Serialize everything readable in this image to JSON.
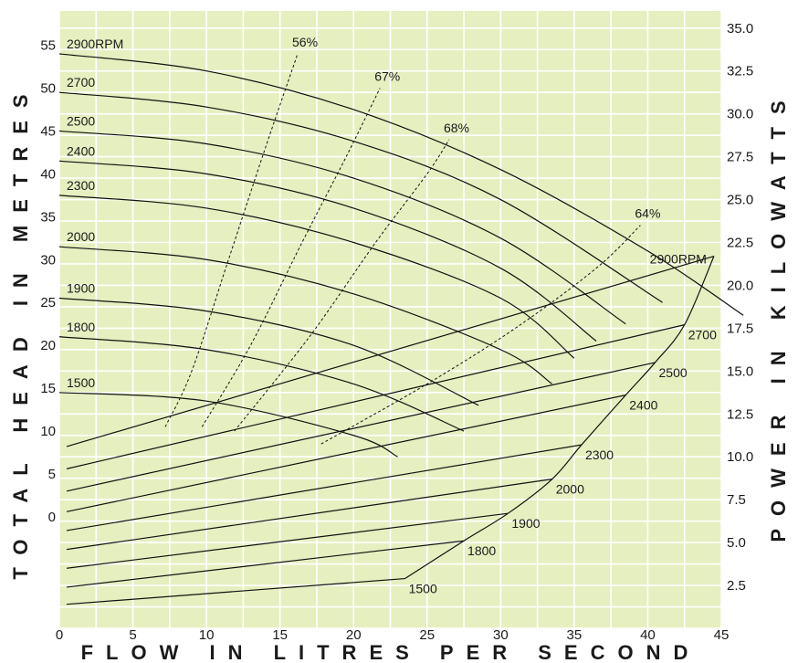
{
  "chart_data": {
    "type": "line",
    "xlabel": "FLOW IN LITRES PER SECOND",
    "ylabel_left": "TOTAL HEAD IN METRES",
    "ylabel_right": "POWER IN KILOWATTS",
    "xlim": [
      0,
      45
    ],
    "ylim_left": [
      -13,
      59
    ],
    "ylim_right": [
      0,
      36
    ],
    "x_ticks": [
      "0",
      "5",
      "10",
      "15",
      "20",
      "25",
      "30",
      "35",
      "40",
      "45"
    ],
    "y_left_ticks": [
      "0",
      "5",
      "10",
      "15",
      "20",
      "25",
      "30",
      "35",
      "40",
      "45",
      "50",
      "55"
    ],
    "y_right_ticks": [
      "2.5",
      "5.0",
      "7.5",
      "10.0",
      "12.5",
      "15.0",
      "17.5",
      "20.0",
      "22.5",
      "25.0",
      "27.5",
      "30.0",
      "32.5",
      "35.0"
    ],
    "grid": true,
    "background_color": "#e6efc0",
    "grid_color": "#ffffff",
    "line_color": "#111111",
    "head_curves": [
      {
        "label": "2900RPM",
        "x": [
          0,
          10,
          20,
          30,
          40,
          46.5
        ],
        "y": [
          54,
          52,
          47.5,
          40.5,
          31,
          23.5
        ]
      },
      {
        "label": "2700",
        "x": [
          0,
          10,
          20,
          30,
          41
        ],
        "y": [
          49.5,
          47.8,
          43.8,
          37,
          25
        ]
      },
      {
        "label": "2500",
        "x": [
          0,
          10,
          20,
          30,
          38.5
        ],
        "y": [
          45,
          43.5,
          39.5,
          32.5,
          22.5
        ]
      },
      {
        "label": "2400",
        "x": [
          0,
          10,
          20,
          30,
          36.5
        ],
        "y": [
          41.5,
          40,
          36,
          29,
          20.5
        ]
      },
      {
        "label": "2300",
        "x": [
          0,
          10,
          20,
          30,
          35
        ],
        "y": [
          37.5,
          36,
          32,
          25.5,
          18.5
        ]
      },
      {
        "label": "2000",
        "x": [
          0,
          10,
          20,
          30,
          33.5
        ],
        "y": [
          31.5,
          30,
          26,
          19.5,
          15.5
        ]
      },
      {
        "label": "1900",
        "x": [
          0,
          10,
          20,
          28.5
        ],
        "y": [
          25.5,
          24,
          20,
          13
        ]
      },
      {
        "label": "1800",
        "x": [
          0,
          10,
          20,
          27.5
        ],
        "y": [
          21,
          19.5,
          15.5,
          10
        ]
      },
      {
        "label": "1500",
        "x": [
          0,
          10,
          20,
          23
        ],
        "y": [
          14.5,
          13.5,
          9.5,
          7
        ]
      }
    ],
    "efficiency_curves": [
      {
        "label": "56%",
        "x": [
          7.2,
          9,
          11.5,
          14,
          16.2
        ],
        "y": [
          10.5,
          17,
          30,
          43,
          54
        ]
      },
      {
        "label": "67%",
        "x": [
          9.7,
          13,
          16.5,
          19.5,
          21.8
        ],
        "y": [
          10.5,
          20,
          32,
          42,
          50
        ]
      },
      {
        "label": "68%",
        "x": [
          11.9,
          17,
          21.5,
          25,
          26.5
        ],
        "y": [
          10,
          21,
          32,
          40,
          44
        ]
      },
      {
        "label": "64%",
        "x": [
          17.8,
          25,
          31,
          36.5,
          39.5
        ],
        "y": [
          8.5,
          15.5,
          22,
          29,
          34
        ]
      }
    ],
    "power_curves": [
      {
        "label": "2900RPM",
        "x": [
          0.5,
          44.5
        ],
        "y": [
          10.6,
          21.7
        ]
      },
      {
        "label": "2700",
        "x": [
          0.5,
          42.5
        ],
        "y": [
          9.3,
          17.7
        ]
      },
      {
        "label": "2500",
        "x": [
          0.5,
          40.5
        ],
        "y": [
          8.0,
          15.5
        ]
      },
      {
        "label": "2400",
        "x": [
          0.5,
          38.5
        ],
        "y": [
          6.8,
          13.6
        ]
      },
      {
        "label": "2300",
        "x": [
          0.5,
          35.5
        ],
        "y": [
          5.7,
          10.7
        ]
      },
      {
        "label": "2000",
        "x": [
          0.5,
          33.5
        ],
        "y": [
          4.6,
          8.7
        ]
      },
      {
        "label": "1900",
        "x": [
          0.5,
          30.5
        ],
        "y": [
          3.5,
          6.7
        ]
      },
      {
        "label": "1800",
        "x": [
          0.5,
          27.5
        ],
        "y": [
          2.4,
          5.1
        ]
      },
      {
        "label": "1500",
        "x": [
          0.5,
          23.5
        ],
        "y": [
          1.4,
          2.9
        ]
      }
    ],
    "power_envelope": {
      "x": [
        23.5,
        27.5,
        30.5,
        33.5,
        35.5,
        38.5,
        40.5,
        42.5,
        44.5
      ],
      "y": [
        2.9,
        5.1,
        6.7,
        8.7,
        10.7,
        13.6,
        15.5,
        17.7,
        21.7
      ]
    }
  }
}
